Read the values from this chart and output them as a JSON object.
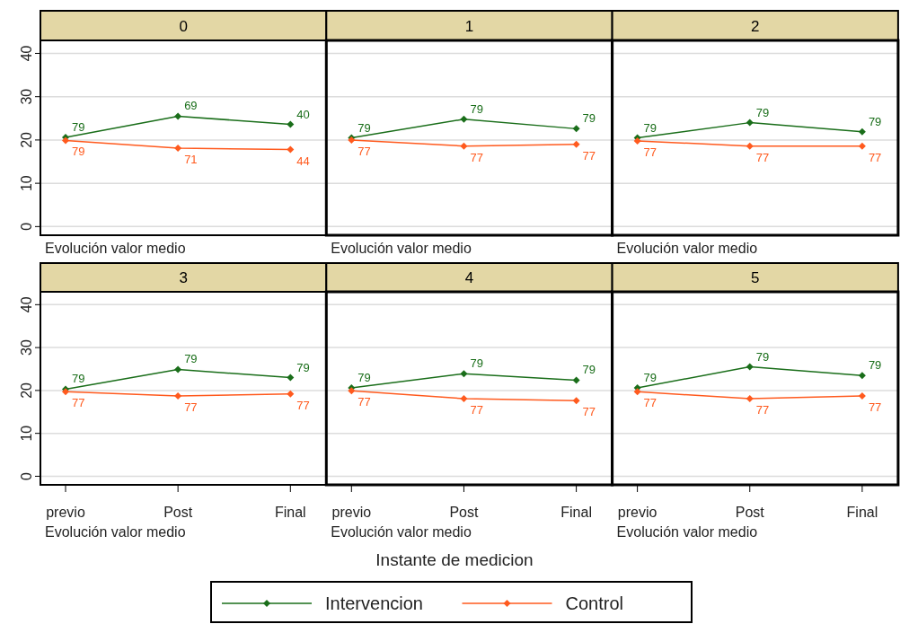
{
  "chart_data": [
    {
      "type": "line",
      "title": "0",
      "xlabel": "Evolución valor medio",
      "categories": [
        "previo",
        "Post",
        "Final"
      ],
      "ylim": [
        -2,
        43
      ],
      "yticks": [
        0,
        10,
        20,
        30,
        40
      ],
      "grid": "y",
      "marker": "diamond",
      "tick_labels": "y",
      "series": [
        {
          "color": "#1a6e1a",
          "values": [
            20.6,
            25.5,
            23.6
          ]
        },
        {
          "color": "#ff5a1e",
          "values": [
            19.9,
            18.1,
            17.8
          ]
        }
      ],
      "annotations": [
        {
          "text": "79",
          "x": "previo",
          "y": 20.6
        },
        {
          "text": "69",
          "x": "Post",
          "y": 25.5
        },
        {
          "text": "40",
          "x": "Final",
          "y": 23.6
        },
        {
          "text": "79",
          "x": "previo",
          "y": 19.9
        },
        {
          "text": "71",
          "x": "Post",
          "y": 18.1
        },
        {
          "text": "44",
          "x": "Final",
          "y": 17.8
        }
      ]
    },
    {
      "type": "line",
      "title": "1",
      "xlabel": "Evolución valor medio",
      "categories": [
        "previo",
        "Post",
        "Final"
      ],
      "ylim": [
        -2,
        43
      ],
      "yticks": [
        0,
        10,
        20,
        30,
        40
      ],
      "grid": "y",
      "marker": "diamond",
      "tick_labels": false,
      "series": [
        {
          "color": "#1a6e1a",
          "values": [
            20.5,
            24.8,
            22.6
          ]
        },
        {
          "color": "#ff5a1e",
          "values": [
            20.0,
            18.6,
            19.0
          ]
        }
      ],
      "annotations": [
        {
          "text": "79",
          "x": "previo",
          "y": 20.5
        },
        {
          "text": "79",
          "x": "Post",
          "y": 24.8
        },
        {
          "text": "79",
          "x": "Final",
          "y": 22.6
        },
        {
          "text": "77",
          "x": "previo",
          "y": 20.0
        },
        {
          "text": "77",
          "x": "Post",
          "y": 18.6
        },
        {
          "text": "77",
          "x": "Final",
          "y": 19.0
        }
      ]
    },
    {
      "type": "line",
      "title": "2",
      "xlabel": "Evolución valor medio",
      "categories": [
        "previo",
        "Post",
        "Final"
      ],
      "ylim": [
        -2,
        43
      ],
      "yticks": [
        0,
        10,
        20,
        30,
        40
      ],
      "grid": "y",
      "marker": "diamond",
      "tick_labels": false,
      "series": [
        {
          "color": "#1a6e1a",
          "values": [
            20.5,
            24.0,
            21.9
          ]
        },
        {
          "color": "#ff5a1e",
          "values": [
            19.8,
            18.6,
            18.6
          ]
        }
      ],
      "annotations": [
        {
          "text": "79",
          "x": "previo",
          "y": 20.5
        },
        {
          "text": "79",
          "x": "Post",
          "y": 24.0
        },
        {
          "text": "79",
          "x": "Final",
          "y": 21.9
        },
        {
          "text": "77",
          "x": "previo",
          "y": 19.8
        },
        {
          "text": "77",
          "x": "Post",
          "y": 18.6
        },
        {
          "text": "77",
          "x": "Final",
          "y": 18.6
        }
      ]
    },
    {
      "type": "line",
      "title": "3",
      "xlabel": "Evolución valor medio",
      "categories": [
        "previo",
        "Post",
        "Final"
      ],
      "ylim": [
        -2,
        43
      ],
      "yticks": [
        0,
        10,
        20,
        30,
        40
      ],
      "grid": "y",
      "marker": "diamond",
      "series": [
        {
          "color": "#1a6e1a",
          "values": [
            20.3,
            24.9,
            23.0
          ]
        },
        {
          "color": "#ff5a1e",
          "values": [
            19.7,
            18.7,
            19.2
          ]
        }
      ],
      "annotations": [
        {
          "text": "79",
          "x": "previo",
          "y": 20.3
        },
        {
          "text": "79",
          "x": "Post",
          "y": 24.9
        },
        {
          "text": "79",
          "x": "Final",
          "y": 23.0
        },
        {
          "text": "77",
          "x": "previo",
          "y": 19.7
        },
        {
          "text": "77",
          "x": "Post",
          "y": 18.7
        },
        {
          "text": "77",
          "x": "Final",
          "y": 19.2
        }
      ]
    },
    {
      "type": "line",
      "title": "4",
      "xlabel": "Evolución valor medio",
      "categories": [
        "previo",
        "Post",
        "Final"
      ],
      "ylim": [
        -2,
        43
      ],
      "yticks": [
        0,
        10,
        20,
        30,
        40
      ],
      "grid": "y",
      "marker": "diamond",
      "tick_labels": "x",
      "legend": "bottom",
      "series": [
        {
          "name": "Intervencion",
          "color": "#1a6e1a",
          "values": [
            20.6,
            23.9,
            22.4
          ]
        },
        {
          "name": "Control",
          "color": "#ff5a1e",
          "values": [
            19.9,
            18.1,
            17.6
          ]
        }
      ],
      "annotations": [
        "Instante de medicion",
        {
          "text": "79",
          "x": "previo",
          "y": 20.6
        },
        {
          "text": "79",
          "x": "Post",
          "y": 23.9
        },
        {
          "text": "79",
          "x": "Final",
          "y": 22.4
        },
        {
          "text": "77",
          "x": "previo",
          "y": 19.9
        },
        {
          "text": "77",
          "x": "Post",
          "y": 18.1
        },
        {
          "text": "77",
          "x": "Final",
          "y": 17.6
        }
      ]
    },
    {
      "type": "line",
      "title": "5",
      "xlabel": "Evolución valor medio",
      "categories": [
        "previo",
        "Post",
        "Final"
      ],
      "ylim": [
        -2,
        43
      ],
      "yticks": [
        0,
        10,
        20,
        30,
        40
      ],
      "grid": "y",
      "marker": "diamond",
      "tick_labels": "x",
      "series": [
        {
          "color": "#1a6e1a",
          "values": [
            20.6,
            25.5,
            23.5
          ]
        },
        {
          "color": "#ff5a1e",
          "values": [
            19.7,
            18.1,
            18.7
          ]
        }
      ],
      "annotations": [
        {
          "text": "79",
          "x": "previo",
          "y": 20.6
        },
        {
          "text": "79",
          "x": "Post",
          "y": 25.5
        },
        {
          "text": "79",
          "x": "Final",
          "y": 23.5
        },
        {
          "text": "77",
          "x": "previo",
          "y": 19.7
        },
        {
          "text": "77",
          "x": "Post",
          "y": 18.1
        },
        {
          "text": "77",
          "x": "Final",
          "y": 18.7
        }
      ]
    }
  ]
}
